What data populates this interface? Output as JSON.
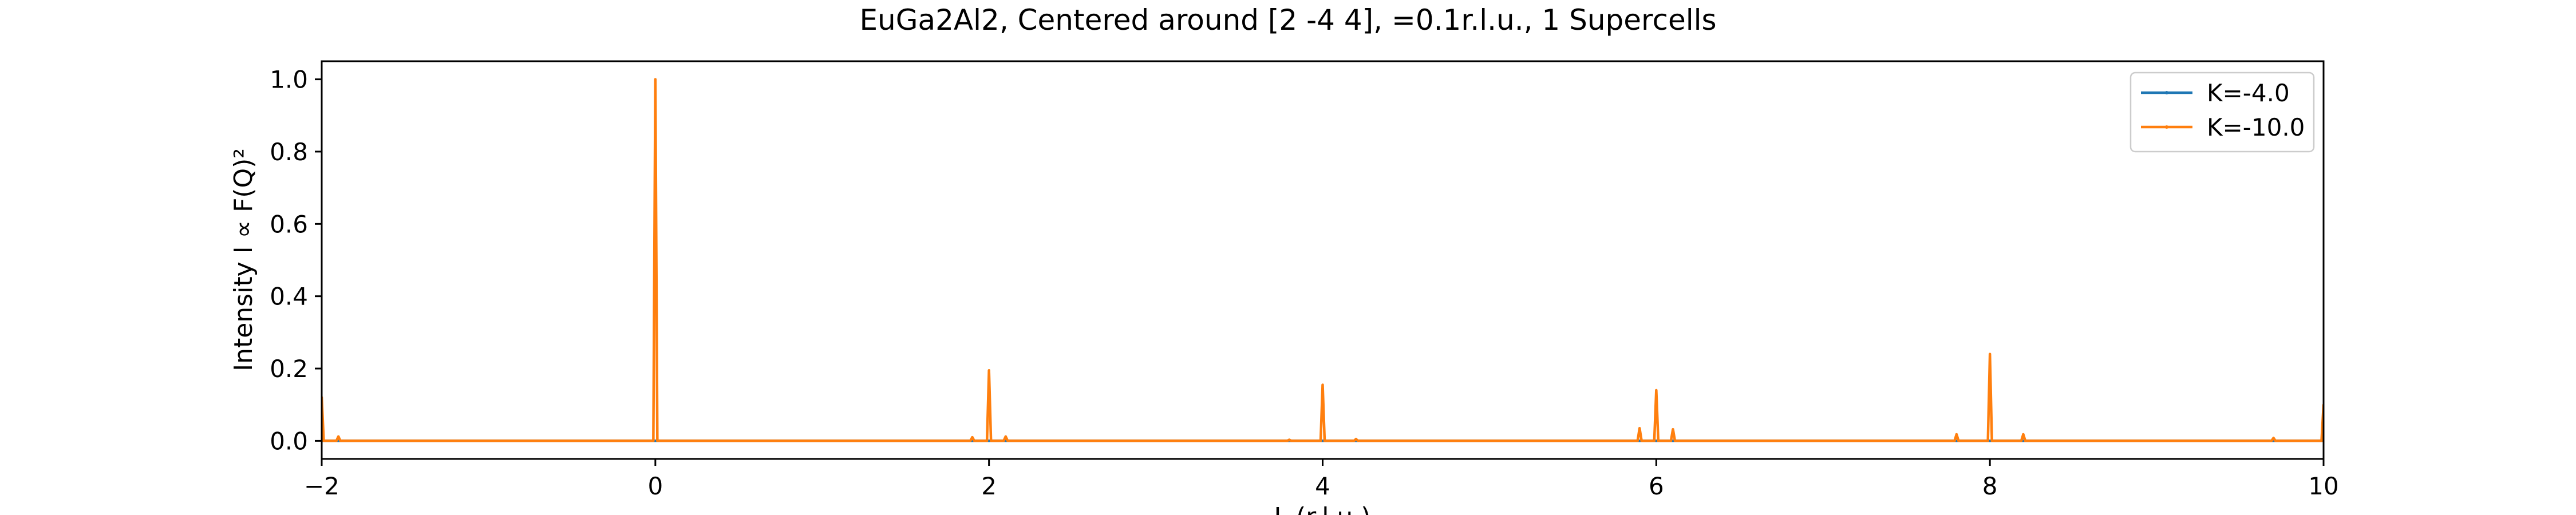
{
  "chart_data": {
    "type": "line",
    "title": "EuGa2Al2, Centered around [2 -4 4], =0.1r.l.u., 1 Supercells",
    "xlabel": "L (r.l.u.)",
    "ylabel": "Intensity I ∝ F(Q)²",
    "xlim": [
      -2,
      10
    ],
    "ylim": [
      -0.05,
      1.05
    ],
    "x_ticks": [
      -2,
      0,
      2,
      4,
      6,
      8,
      10
    ],
    "x_tick_labels": [
      "−2",
      "0",
      "2",
      "4",
      "6",
      "8",
      "10"
    ],
    "y_ticks": [
      0.0,
      0.2,
      0.4,
      0.6,
      0.8,
      1.0
    ],
    "y_tick_labels": [
      "0.0",
      "0.2",
      "0.4",
      "0.6",
      "0.8",
      "1.0"
    ],
    "grid": false,
    "legend_position": "top-right",
    "series": [
      {
        "name": "K=-4.0",
        "color": "#1f77b4",
        "baseline": 0.0,
        "peaks": []
      },
      {
        "name": "K=-10.0",
        "color": "#ff7f0e",
        "baseline": 0.0,
        "peaks": [
          {
            "x": -2.0,
            "y": 0.12
          },
          {
            "x": -1.9,
            "y": 0.012
          },
          {
            "x": 0.0,
            "y": 1.0
          },
          {
            "x": 1.9,
            "y": 0.01
          },
          {
            "x": 2.0,
            "y": 0.195
          },
          {
            "x": 2.1,
            "y": 0.012
          },
          {
            "x": 3.8,
            "y": 0.003
          },
          {
            "x": 4.0,
            "y": 0.155
          },
          {
            "x": 4.2,
            "y": 0.005
          },
          {
            "x": 5.9,
            "y": 0.035
          },
          {
            "x": 6.0,
            "y": 0.14
          },
          {
            "x": 6.1,
            "y": 0.032
          },
          {
            "x": 7.8,
            "y": 0.018
          },
          {
            "x": 8.0,
            "y": 0.24
          },
          {
            "x": 8.2,
            "y": 0.018
          },
          {
            "x": 9.7,
            "y": 0.008
          },
          {
            "x": 10.0,
            "y": 0.1
          }
        ]
      }
    ]
  }
}
